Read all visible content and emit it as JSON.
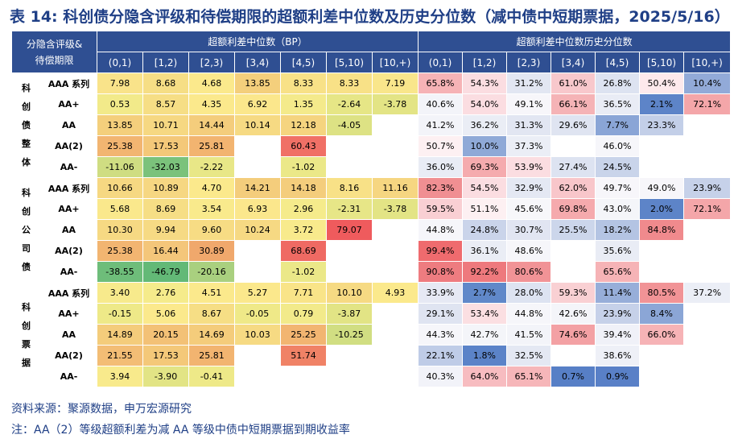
{
  "title": "表 14: 科创债分隐含评级和待偿期限的超额利差中位数及历史分位数（减中债中短期票据，2025/5/16）",
  "header": {
    "corner_line1": "分隐含评级&",
    "corner_line2": "待偿期限",
    "group_spread": "超额利差中位数（BP）",
    "group_pct": "超额利差中位数历史分位数",
    "buckets": [
      "(0,1)",
      "[1,2)",
      "[2,3)",
      "[3,4)",
      "[4,5)",
      "[5,10)",
      "[10,+)"
    ]
  },
  "groups": [
    {
      "label": "科创债整体",
      "rows": [
        {
          "rating": "AAA 系列",
          "spread": [
            "7.98",
            "8.68",
            "4.68",
            "13.85",
            "8.33",
            "8.33",
            "7.19"
          ],
          "spread_color": [
            "#f9e38a",
            "#f6de85",
            "#fbe98c",
            "#f4cf7c",
            "#f8e187",
            "#f8e187",
            "#f9e68b"
          ],
          "pct": [
            "65.8%",
            "54.3%",
            "31.2%",
            "61.0%",
            "26.8%",
            "50.4%",
            "10.4%"
          ],
          "pct_color": [
            "#f6b3b6",
            "#fbdde1",
            "#e2e6f2",
            "#f8c8cc",
            "#dde3f1",
            "#fde9ec",
            "#92aad8"
          ]
        },
        {
          "rating": "AA+",
          "spread": [
            "0.53",
            "8.57",
            "4.35",
            "6.92",
            "1.35",
            "-2.64",
            "-3.78"
          ],
          "spread_color": [
            "#f2ea8a",
            "#f6de85",
            "#fbe98c",
            "#fbe78c",
            "#f4ea8b",
            "#e6e686",
            "#e3e485"
          ],
          "pct": [
            "40.6%",
            "54.0%",
            "49.1%",
            "66.1%",
            "36.5%",
            "2.1%",
            "72.1%"
          ],
          "pct_color": [
            "#f3f4f9",
            "#fbdde1",
            "#f7f6fa",
            "#f5b3b6",
            "#e9ecf5",
            "#5d84c8",
            "#f4a6a9"
          ]
        },
        {
          "rating": "AA",
          "spread": [
            "13.85",
            "10.71",
            "14.44",
            "10.14",
            "12.18",
            "-4.05",
            ""
          ],
          "spread_color": [
            "#f4cf7c",
            "#f6d882",
            "#f4cd7c",
            "#f6da83",
            "#f5d47f",
            "#dde284",
            ""
          ],
          "pct": [
            "41.2%",
            "36.2%",
            "31.3%",
            "29.6%",
            "7.7%",
            "23.3%",
            ""
          ],
          "pct_color": [
            "#f3f4f9",
            "#eaedf5",
            "#e2e6f2",
            "#dfe4f1",
            "#8aa5d6",
            "#c3cfe8",
            ""
          ]
        },
        {
          "rating": "AA(2)",
          "spread": [
            "25.38",
            "17.53",
            "25.81",
            "",
            "60.43",
            "",
            ""
          ],
          "spread_color": [
            "#f2b571",
            "#f4c879",
            "#f2b470",
            "",
            "#f07066",
            "",
            ""
          ],
          "pct": [
            "50.7%",
            "10.0%",
            "37.3%",
            "",
            "46.0%",
            "",
            ""
          ],
          "pct_color": [
            "#fdf0f2",
            "#8fa9d7",
            "#ebeef6",
            "",
            "#f6f6fa",
            "",
            ""
          ]
        },
        {
          "rating": "AA-",
          "spread": [
            "-11.06",
            "-32.03",
            "-2.22",
            "",
            "-1.02",
            "",
            ""
          ],
          "spread_color": [
            "#cfdd82",
            "#7bc27b",
            "#e8e787",
            "",
            "#ebe888",
            "",
            ""
          ],
          "pct": [
            "36.0%",
            "69.3%",
            "53.9%",
            "27.4%",
            "24.5%",
            "",
            ""
          ],
          "pct_color": [
            "#e9ecf5",
            "#f5abae",
            "#fbdde1",
            "#dde3f1",
            "#c9d4ea",
            "",
            ""
          ]
        }
      ]
    },
    {
      "label": "科创公司债",
      "rows": [
        {
          "rating": "AAA 系列",
          "spread": [
            "10.66",
            "10.89",
            "4.70",
            "14.21",
            "14.18",
            "8.16",
            "11.16"
          ],
          "spread_color": [
            "#f6d882",
            "#f6d782",
            "#fbe98c",
            "#f4cd7c",
            "#f4cd7c",
            "#f8e187",
            "#f6d681"
          ],
          "pct": [
            "82.3%",
            "54.5%",
            "32.9%",
            "62.0%",
            "49.7%",
            "49.0%",
            "23.9%"
          ],
          "pct_color": [
            "#f08f92",
            "#fbdde1",
            "#e4e8f3",
            "#f8c6ca",
            "#f7f6fa",
            "#f7f6fa",
            "#c6d1e9"
          ]
        },
        {
          "rating": "AA+",
          "spread": [
            "5.68",
            "8.69",
            "3.54",
            "6.93",
            "2.96",
            "-2.31",
            "-3.78"
          ],
          "spread_color": [
            "#fae88c",
            "#f6de85",
            "#f9ea8c",
            "#fbe78c",
            "#f5eb8b",
            "#e7e687",
            "#e3e485"
          ],
          "pct": [
            "59.5%",
            "51.1%",
            "45.6%",
            "69.8%",
            "43.0%",
            "2.0%",
            "72.1%"
          ],
          "pct_color": [
            "#f9cfd3",
            "#fdf0f2",
            "#f7f7fa",
            "#f5aaad",
            "#f4f5f9",
            "#5d84c8",
            "#f4a6a9"
          ]
        },
        {
          "rating": "AA",
          "spread": [
            "10.30",
            "9.94",
            "9.60",
            "10.24",
            "3.72",
            "79.07",
            ""
          ],
          "spread_color": [
            "#f6d983",
            "#f6da84",
            "#f7dc84",
            "#f6d983",
            "#f8ea8c",
            "#ef5b5d",
            ""
          ],
          "pct": [
            "44.8%",
            "24.8%",
            "30.7%",
            "25.5%",
            "18.2%",
            "84.8%",
            ""
          ],
          "pct_color": [
            "#f6f6fa",
            "#cad4ea",
            "#e1e5f2",
            "#ccd6eb",
            "#b4c4e3",
            "#f08a8d",
            ""
          ]
        },
        {
          "rating": "AA(2)",
          "spread": [
            "25.38",
            "16.44",
            "30.89",
            "",
            "68.69",
            "",
            ""
          ],
          "spread_color": [
            "#f2b571",
            "#f4c67a",
            "#f0a86c",
            "",
            "#ef6a63",
            "",
            ""
          ],
          "pct": [
            "99.4%",
            "36.1%",
            "48.6%",
            "",
            "35.6%",
            "",
            ""
          ],
          "pct_color": [
            "#ef6b6e",
            "#eaedf5",
            "#f6f6fa",
            "",
            "#e9ecf5",
            "",
            ""
          ]
        },
        {
          "rating": "AA-",
          "spread": [
            "-38.55",
            "-46.79",
            "-20.16",
            "",
            "-1.02",
            "",
            ""
          ],
          "spread_color": [
            "#6ebd7a",
            "#63b977",
            "#a9d07f",
            "",
            "#ebe888",
            "",
            ""
          ],
          "pct": [
            "90.8%",
            "92.2%",
            "80.6%",
            "",
            "65.6%",
            "",
            ""
          ],
          "pct_color": [
            "#ee7c80",
            "#ee797d",
            "#f19396",
            "",
            "#f6b3b6",
            "",
            ""
          ]
        }
      ]
    },
    {
      "label": "科创票据",
      "rows": [
        {
          "rating": "AAA 系列",
          "spread": [
            "3.40",
            "2.76",
            "4.51",
            "5.27",
            "7.71",
            "10.10",
            "4.93"
          ],
          "spread_color": [
            "#f7ea8c",
            "#f5eb8b",
            "#fbe98c",
            "#fbe88c",
            "#f9e488",
            "#f6da83",
            "#fbe98c"
          ],
          "pct": [
            "33.9%",
            "2.7%",
            "28.0%",
            "59.3%",
            "11.4%",
            "80.5%",
            "37.2%"
          ],
          "pct_color": [
            "#e6e9f4",
            "#6088c9",
            "#dde3f1",
            "#f9d0d3",
            "#97aed9",
            "#f19396",
            "#ebeef6"
          ]
        },
        {
          "rating": "AA+",
          "spread": [
            "-0.15",
            "5.06",
            "8.67",
            "-0.05",
            "0.79",
            "-3.87",
            ""
          ],
          "spread_color": [
            "#eee988",
            "#fbe98c",
            "#f6de85",
            "#efe988",
            "#f2ea8a",
            "#e2e485",
            ""
          ],
          "pct": [
            "29.1%",
            "53.4%",
            "44.8%",
            "42.6%",
            "23.9%",
            "8.4%",
            ""
          ],
          "pct_color": [
            "#dfe4f1",
            "#fbdfe2",
            "#f6f6fa",
            "#f4f5f9",
            "#c6d1e9",
            "#8ba6d6",
            ""
          ]
        },
        {
          "rating": "AA",
          "spread": [
            "14.89",
            "20.15",
            "14.69",
            "10.03",
            "25.25",
            "-10.25",
            ""
          ],
          "spread_color": [
            "#f4cc7b",
            "#f3c176",
            "#f4cc7b",
            "#f6da83",
            "#f2b571",
            "#d1de82",
            ""
          ],
          "pct": [
            "44.3%",
            "42.7%",
            "41.5%",
            "74.6%",
            "39.4%",
            "66.0%",
            ""
          ],
          "pct_color": [
            "#f6f6fa",
            "#f4f5f9",
            "#f3f4f9",
            "#f3a1a4",
            "#f0f1f8",
            "#f6b3b6",
            ""
          ]
        },
        {
          "rating": "AA(2)",
          "spread": [
            "21.55",
            "17.53",
            "25.81",
            "",
            "51.74",
            "",
            ""
          ],
          "spread_color": [
            "#f3bd75",
            "#f4c879",
            "#f2b470",
            "",
            "#f08266",
            "",
            ""
          ],
          "pct": [
            "22.1%",
            "1.8%",
            "32.5%",
            "",
            "38.6%",
            "",
            ""
          ],
          "pct_color": [
            "#bfcce7",
            "#5b83c8",
            "#e4e8f3",
            "",
            "#eef0f7",
            "",
            ""
          ]
        },
        {
          "rating": "AA-",
          "spread": [
            "3.94",
            "-3.90",
            "-0.41",
            "",
            "",
            "",
            ""
          ],
          "spread_color": [
            "#f8ea8c",
            "#e2e485",
            "#eee988",
            "",
            "",
            "",
            ""
          ],
          "pct": [
            "40.3%",
            "64.0%",
            "65.1%",
            "0.7%",
            "0.9%",
            "",
            ""
          ],
          "pct_color": [
            "#f2f3f9",
            "#f7bcc0",
            "#f6b6b9",
            "#577fc6",
            "#5980c7",
            "",
            ""
          ]
        }
      ]
    }
  ],
  "footer": {
    "source": "资料来源：聚源数据，申万宏源研究",
    "note": "注：AA（2）等级超额利差为减 AA 等级中债中短期票据到期收益率"
  }
}
